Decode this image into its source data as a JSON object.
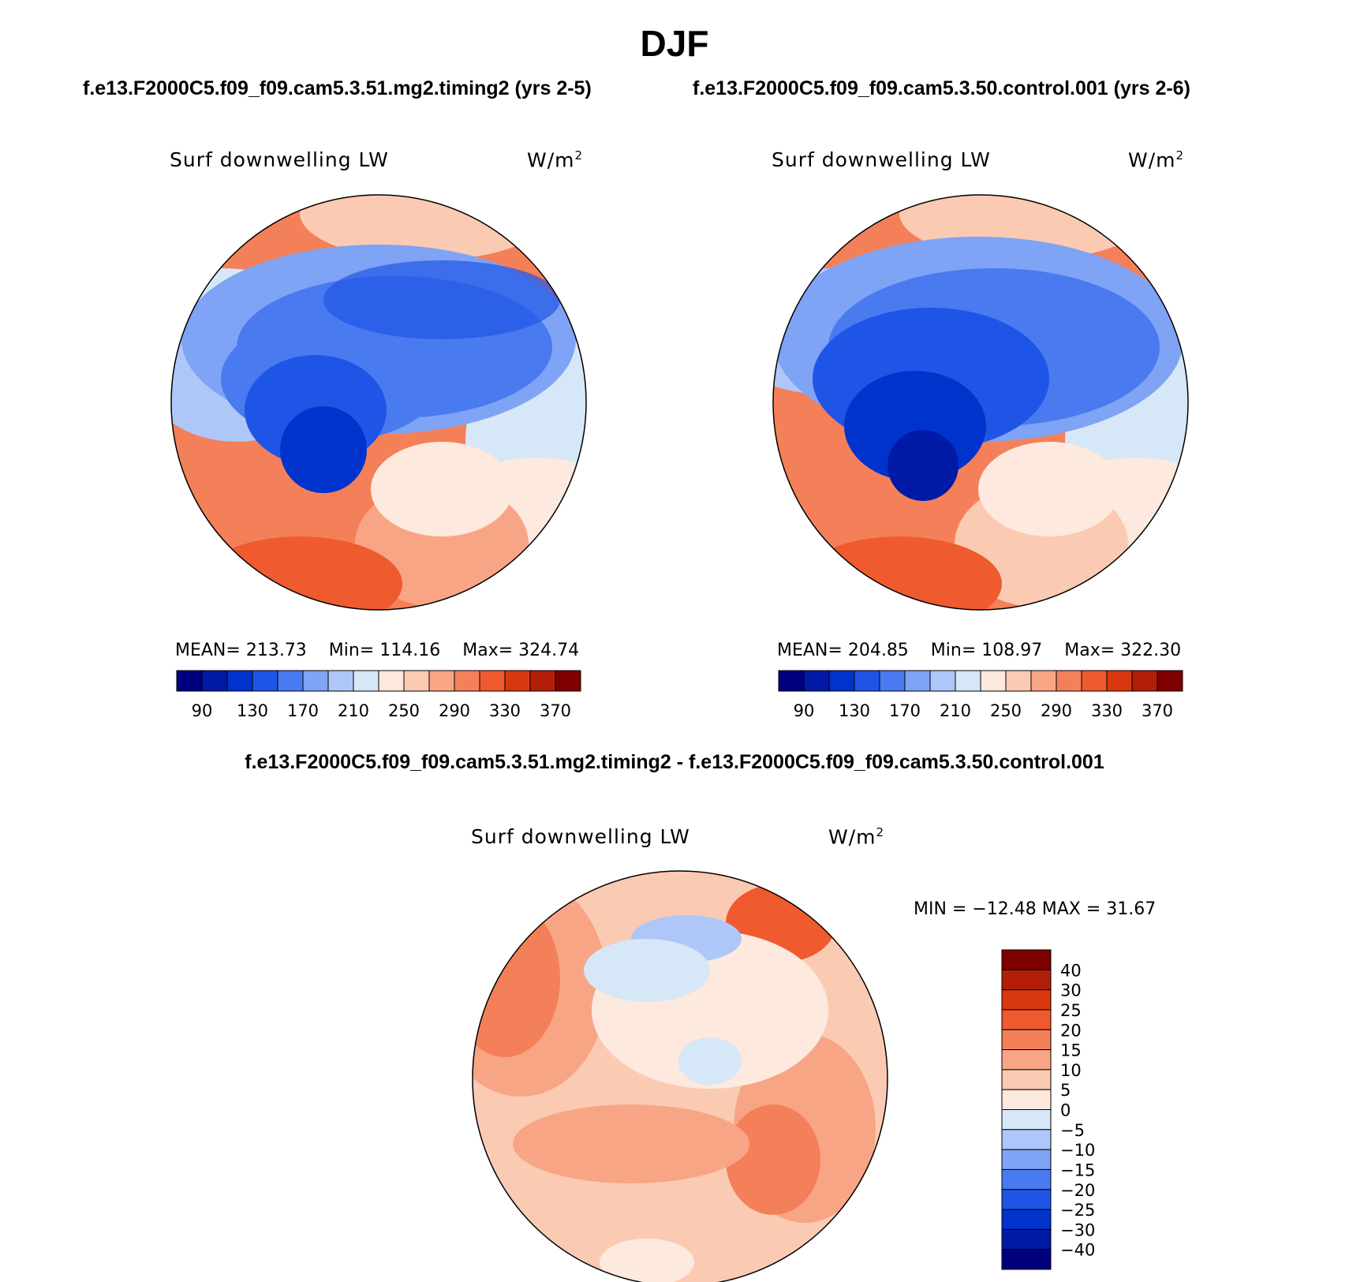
{
  "title": "DJF",
  "case1_title": "f.e13.F2000C5.f09_f09.cam5.3.51.mg2.timing2 (yrs 2-5)",
  "case2_title": "f.e13.F2000C5.f09_f09.cam5.3.50.control.001 (yrs 2-6)",
  "diff_title": "f.e13.F2000C5.f09_f09.cam5.3.51.mg2.timing2 - f.e13.F2000C5.f09_f09.cam5.3.50.control.001",
  "variable_label": "Surf downwelling LW",
  "units_label": "W/m",
  "units_superscript": "2",
  "chart_data": [
    {
      "type": "heatmap",
      "projection": "north polar stereographic",
      "title": "Surf downwelling LW",
      "units": "W/m2",
      "case": "f.e13.F2000C5.f09_f09.cam5.3.51.mg2.timing2 (yrs 2-5)",
      "stats": {
        "mean_label": "MEAN=",
        "mean": "213.73",
        "min_label": "Min=",
        "min": "114.16",
        "max_label": "Max=",
        "max": "324.74"
      },
      "levels": [
        90,
        110,
        130,
        150,
        170,
        190,
        210,
        230,
        250,
        270,
        290,
        310,
        330,
        350,
        370
      ],
      "tick_labels": [
        "90",
        "130",
        "170",
        "210",
        "250",
        "290",
        "330",
        "370"
      ]
    },
    {
      "type": "heatmap",
      "projection": "north polar stereographic",
      "title": "Surf downwelling LW",
      "units": "W/m2",
      "case": "f.e13.F2000C5.f09_f09.cam5.3.50.control.001 (yrs 2-6)",
      "stats": {
        "mean_label": "MEAN=",
        "mean": "204.85",
        "min_label": "Min=",
        "min": "108.97",
        "max_label": "Max=",
        "max": "322.30"
      },
      "levels": [
        90,
        110,
        130,
        150,
        170,
        190,
        210,
        230,
        250,
        270,
        290,
        310,
        330,
        350,
        370
      ],
      "tick_labels": [
        "90",
        "130",
        "170",
        "210",
        "250",
        "290",
        "330",
        "370"
      ]
    },
    {
      "type": "heatmap",
      "projection": "north polar stereographic",
      "title": "Surf downwelling LW",
      "units": "W/m2",
      "case": "f.e13.F2000C5.f09_f09.cam5.3.51.mg2.timing2 - f.e13.F2000C5.f09_f09.cam5.3.50.control.001",
      "stats_text": "MIN = −12.48 MAX =   31.67",
      "stats": {
        "min": -12.48,
        "max": 31.67
      },
      "levels": [
        -40,
        -30,
        -25,
        -20,
        -15,
        -10,
        -5,
        0,
        5,
        10,
        15,
        20,
        25,
        30,
        40
      ],
      "tick_labels": [
        "40",
        "30",
        "25",
        "20",
        "15",
        "10",
        "5",
        "0",
        "−5",
        "−10",
        "−15",
        "−20",
        "−25",
        "−30",
        "−40"
      ]
    }
  ],
  "colors": {
    "blue_red_16": [
      "#00007f",
      "#001aa6",
      "#0033cc",
      "#1f55e6",
      "#4a7af0",
      "#7fa3f5",
      "#aec7f8",
      "#d6e7f8",
      "#fde9dd",
      "#fbcab2",
      "#f8a585",
      "#f4805a",
      "#ef5a2e",
      "#d8380e",
      "#b21e08",
      "#7f0000"
    ]
  }
}
